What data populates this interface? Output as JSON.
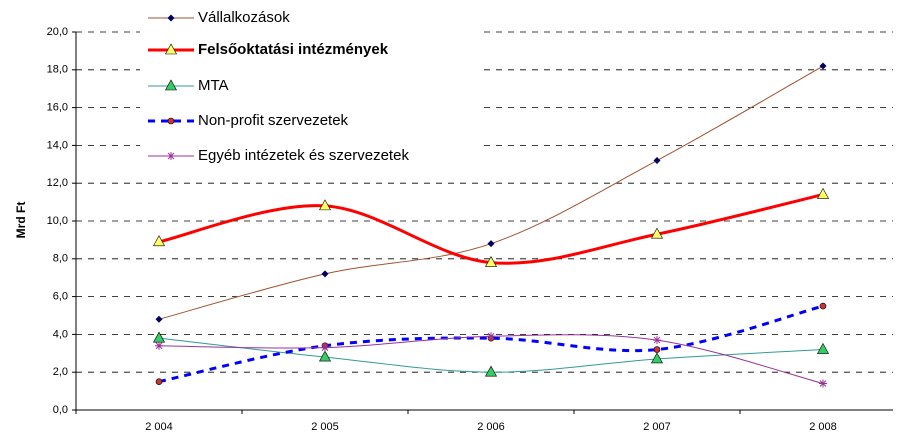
{
  "chart_data": {
    "type": "line",
    "y_label": "Mrd Ft",
    "categories": [
      "2 004",
      "2 005",
      "2 006",
      "2 007",
      "2 008"
    ],
    "ylim": [
      0,
      20
    ],
    "yticks": [
      {
        "value": 0,
        "label": "0,0"
      },
      {
        "value": 2,
        "label": "2,0"
      },
      {
        "value": 4,
        "label": "4,0"
      },
      {
        "value": 6,
        "label": "6,0"
      },
      {
        "value": 8,
        "label": "8,0"
      },
      {
        "value": 10,
        "label": "10,0"
      },
      {
        "value": 12,
        "label": "12,0"
      },
      {
        "value": 14,
        "label": "14,0"
      },
      {
        "value": 16,
        "label": "16,0"
      },
      {
        "value": 18,
        "label": "18,0"
      },
      {
        "value": 20,
        "label": "20,0"
      }
    ],
    "grid": true,
    "smooth": true,
    "legend": "top-left",
    "series": [
      {
        "name": "Vállalkozások",
        "color": "#a0522d",
        "width": 1,
        "dash": false,
        "marker": "diamond",
        "marker_color": "#000066",
        "bold": false,
        "values": [
          4.8,
          7.2,
          8.8,
          13.2,
          18.2
        ]
      },
      {
        "name": "Felsőoktatási intézmények",
        "color": "#ff0000",
        "width": 3,
        "dash": false,
        "marker": "triangle",
        "marker_color": "#ffff66",
        "bold": true,
        "values": [
          8.9,
          10.8,
          7.8,
          9.3,
          11.4
        ]
      },
      {
        "name": "MTA",
        "color": "#339999",
        "width": 1,
        "dash": false,
        "marker": "triangle",
        "marker_color": "#33cc66",
        "bold": false,
        "values": [
          3.8,
          2.8,
          2.0,
          2.7,
          3.2
        ]
      },
      {
        "name": "Non-profit szervezetek",
        "color": "#0000ff",
        "width": 3,
        "dash": true,
        "marker": "circle",
        "marker_color": "#cc3333",
        "bold": false,
        "values": [
          1.5,
          3.4,
          3.8,
          3.2,
          5.5
        ]
      },
      {
        "name": "Egyéb intézetek és szervezetek",
        "color": "#993399",
        "width": 1,
        "dash": false,
        "marker": "star",
        "marker_color": "#993399",
        "bold": false,
        "values": [
          3.4,
          3.3,
          3.9,
          3.7,
          1.4
        ]
      }
    ]
  }
}
